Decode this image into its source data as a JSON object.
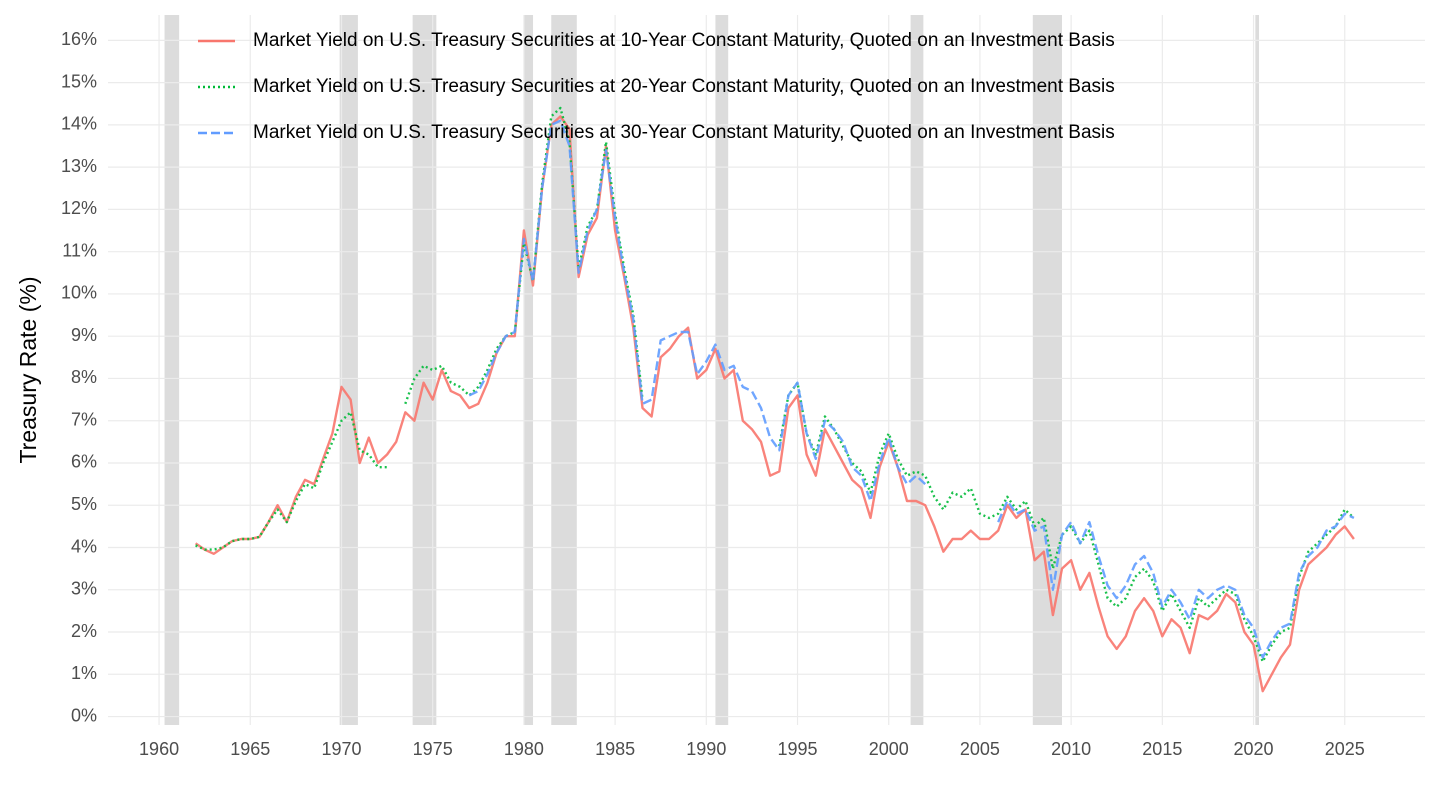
{
  "chart_data": {
    "type": "line",
    "y_label": "Treasury Rate (%)",
    "legend": "top-left",
    "grid": true,
    "xlim": [
      1957.2,
      2029.4
    ],
    "ylim": [
      -0.2,
      16.6
    ],
    "xticks": [
      1960,
      1965,
      1970,
      1975,
      1980,
      1985,
      1990,
      1995,
      2000,
      2005,
      2010,
      2015,
      2020,
      2025
    ],
    "yticks": [
      {
        "value": 0,
        "label": "0%"
      },
      {
        "value": 1,
        "label": "1%"
      },
      {
        "value": 2,
        "label": "2%"
      },
      {
        "value": 3,
        "label": "3%"
      },
      {
        "value": 4,
        "label": "4%"
      },
      {
        "value": 5,
        "label": "5%"
      },
      {
        "value": 6,
        "label": "6%"
      },
      {
        "value": 7,
        "label": "7%"
      },
      {
        "value": 8,
        "label": "8%"
      },
      {
        "value": 9,
        "label": "9%"
      },
      {
        "value": 10,
        "label": "10%"
      },
      {
        "value": 11,
        "label": "11%"
      },
      {
        "value": 12,
        "label": "12%"
      },
      {
        "value": 13,
        "label": "13%"
      },
      {
        "value": 14,
        "label": "14%"
      },
      {
        "value": 15,
        "label": "15%"
      },
      {
        "value": 16,
        "label": "16%"
      }
    ],
    "recessions": [
      [
        1960.3,
        1961.1
      ],
      [
        1969.9,
        1970.9
      ],
      [
        1973.9,
        1975.2
      ],
      [
        1980.0,
        1980.5
      ],
      [
        1981.5,
        1982.9
      ],
      [
        1990.5,
        1991.2
      ],
      [
        2001.2,
        2001.9
      ],
      [
        2007.9,
        2009.5
      ],
      [
        2020.1,
        2020.3
      ]
    ],
    "recession_color": "#dcdcdc",
    "x": [
      1962.0,
      1962.5,
      1963.0,
      1963.5,
      1964.0,
      1964.5,
      1965.0,
      1965.5,
      1966.0,
      1966.5,
      1967.0,
      1967.5,
      1968.0,
      1968.5,
      1969.0,
      1969.5,
      1970.0,
      1970.5,
      1971.0,
      1971.5,
      1972.0,
      1972.5,
      1973.0,
      1973.5,
      1974.0,
      1974.5,
      1975.0,
      1975.5,
      1976.0,
      1976.5,
      1977.0,
      1977.5,
      1978.0,
      1978.5,
      1979.0,
      1979.5,
      1980.0,
      1980.5,
      1981.0,
      1981.5,
      1982.0,
      1982.5,
      1983.0,
      1983.5,
      1984.0,
      1984.5,
      1985.0,
      1985.5,
      1986.0,
      1986.5,
      1987.0,
      1987.5,
      1988.0,
      1988.5,
      1989.0,
      1989.5,
      1990.0,
      1990.5,
      1991.0,
      1991.5,
      1992.0,
      1992.5,
      1993.0,
      1993.5,
      1994.0,
      1994.5,
      1995.0,
      1995.5,
      1996.0,
      1996.5,
      1997.0,
      1997.5,
      1998.0,
      1998.5,
      1999.0,
      1999.5,
      2000.0,
      2000.5,
      2001.0,
      2001.5,
      2002.0,
      2002.5,
      2003.0,
      2003.5,
      2004.0,
      2004.5,
      2005.0,
      2005.5,
      2006.0,
      2006.5,
      2007.0,
      2007.5,
      2008.0,
      2008.5,
      2009.0,
      2009.5,
      2010.0,
      2010.5,
      2011.0,
      2011.5,
      2012.0,
      2012.5,
      2013.0,
      2013.5,
      2014.0,
      2014.5,
      2015.0,
      2015.5,
      2016.0,
      2016.5,
      2017.0,
      2017.5,
      2018.0,
      2018.5,
      2019.0,
      2019.5,
      2020.0,
      2020.5,
      2021.0,
      2021.5,
      2022.0,
      2022.5,
      2023.0,
      2023.5,
      2024.0,
      2024.5,
      2025.0,
      2025.5
    ],
    "series": [
      {
        "name": "Market Yield on U.S. Treasury Securities at 10-Year Constant Maturity, Quoted on an Investment Basis",
        "color": "#F8766D",
        "style": "solid",
        "values": [
          4.1,
          3.95,
          3.85,
          4.0,
          4.15,
          4.2,
          4.2,
          4.25,
          4.6,
          5.0,
          4.6,
          5.2,
          5.6,
          5.5,
          6.1,
          6.7,
          7.8,
          7.5,
          6.0,
          6.6,
          6.0,
          6.2,
          6.5,
          7.2,
          7.0,
          7.9,
          7.5,
          8.2,
          7.7,
          7.6,
          7.3,
          7.4,
          7.9,
          8.6,
          9.0,
          9.0,
          11.5,
          10.2,
          12.5,
          14.0,
          14.2,
          13.9,
          10.4,
          11.4,
          11.8,
          13.5,
          11.5,
          10.4,
          9.2,
          7.3,
          7.1,
          8.5,
          8.7,
          9.0,
          9.2,
          8.0,
          8.2,
          8.7,
          8.0,
          8.2,
          7.0,
          6.8,
          6.5,
          5.7,
          5.8,
          7.3,
          7.6,
          6.2,
          5.7,
          6.8,
          6.4,
          6.0,
          5.6,
          5.4,
          4.7,
          5.9,
          6.5,
          5.9,
          5.1,
          5.1,
          5.0,
          4.5,
          3.9,
          4.2,
          4.2,
          4.4,
          4.2,
          4.2,
          4.4,
          5.0,
          4.7,
          4.9,
          3.7,
          3.9,
          2.4,
          3.5,
          3.7,
          3.0,
          3.4,
          2.6,
          1.9,
          1.6,
          1.9,
          2.5,
          2.8,
          2.5,
          1.9,
          2.3,
          2.1,
          1.5,
          2.4,
          2.3,
          2.5,
          2.9,
          2.7,
          2.0,
          1.7,
          0.6,
          1.0,
          1.4,
          1.7,
          3.0,
          3.6,
          3.8,
          4.0,
          4.3,
          4.5,
          4.2
        ]
      },
      {
        "name": "Market Yield on U.S. Treasury Securities at 20-Year Constant Maturity, Quoted on an Investment Basis",
        "color": "#00BA38",
        "style": "dotted",
        "values": [
          4.05,
          3.95,
          3.95,
          4.0,
          4.15,
          4.2,
          4.2,
          4.25,
          4.6,
          4.9,
          4.6,
          5.1,
          5.5,
          5.4,
          6.0,
          6.5,
          7.0,
          7.2,
          6.3,
          6.2,
          5.9,
          5.9,
          null,
          7.4,
          8.0,
          8.3,
          8.2,
          8.3,
          7.9,
          7.8,
          7.6,
          7.8,
          8.2,
          8.7,
          9.0,
          9.1,
          11.2,
          10.3,
          12.6,
          14.2,
          14.4,
          13.6,
          10.6,
          11.6,
          12.0,
          13.6,
          11.9,
          10.6,
          9.5,
          7.5,
          null,
          null,
          null,
          null,
          null,
          null,
          null,
          null,
          null,
          null,
          null,
          null,
          null,
          null,
          6.4,
          7.6,
          7.9,
          6.7,
          6.2,
          7.1,
          6.8,
          6.4,
          6.0,
          5.8,
          5.3,
          6.2,
          6.7,
          6.1,
          5.7,
          5.8,
          5.7,
          5.2,
          4.9,
          5.3,
          5.2,
          5.4,
          4.8,
          4.7,
          4.8,
          5.2,
          4.9,
          5.1,
          4.5,
          4.7,
          3.5,
          4.3,
          4.5,
          4.1,
          4.4,
          3.6,
          2.8,
          2.6,
          2.8,
          3.3,
          3.5,
          3.2,
          2.5,
          2.9,
          2.5,
          2.1,
          2.8,
          2.6,
          2.8,
          3.0,
          2.9,
          2.3,
          1.9,
          1.3,
          1.7,
          2.0,
          2.1,
          3.3,
          3.9,
          4.1,
          4.3,
          4.5,
          4.9,
          4.7
        ]
      },
      {
        "name": "Market Yield on U.S. Treasury Securities at 30-Year Constant Maturity, Quoted on an Investment Basis",
        "color": "#619CFF",
        "style": "dashed",
        "values": [
          null,
          null,
          null,
          null,
          null,
          null,
          null,
          null,
          null,
          null,
          null,
          null,
          null,
          null,
          null,
          null,
          null,
          null,
          null,
          null,
          null,
          null,
          null,
          null,
          null,
          null,
          null,
          null,
          null,
          null,
          7.6,
          7.7,
          8.1,
          8.6,
          9.0,
          9.1,
          11.3,
          10.3,
          12.5,
          14.0,
          14.1,
          13.5,
          10.5,
          11.5,
          12.0,
          13.4,
          11.8,
          10.5,
          9.4,
          7.4,
          7.5,
          8.9,
          9.0,
          9.1,
          9.1,
          8.1,
          8.4,
          8.8,
          8.2,
          8.3,
          7.8,
          7.7,
          7.3,
          6.6,
          6.3,
          7.6,
          7.9,
          6.7,
          6.1,
          7.0,
          6.8,
          6.5,
          5.9,
          5.7,
          5.1,
          6.0,
          6.6,
          5.9,
          5.5,
          5.7,
          5.5,
          null,
          null,
          null,
          null,
          null,
          null,
          null,
          4.6,
          5.1,
          4.8,
          4.9,
          4.4,
          4.5,
          3.0,
          4.3,
          4.6,
          4.1,
          4.6,
          3.8,
          3.1,
          2.8,
          3.1,
          3.6,
          3.8,
          3.4,
          2.6,
          3.0,
          2.7,
          2.3,
          3.0,
          2.8,
          3.0,
          3.1,
          3.0,
          2.4,
          2.1,
          1.4,
          1.8,
          2.1,
          2.2,
          3.4,
          3.8,
          4.0,
          4.4,
          4.5,
          4.8,
          4.7
        ]
      }
    ]
  }
}
